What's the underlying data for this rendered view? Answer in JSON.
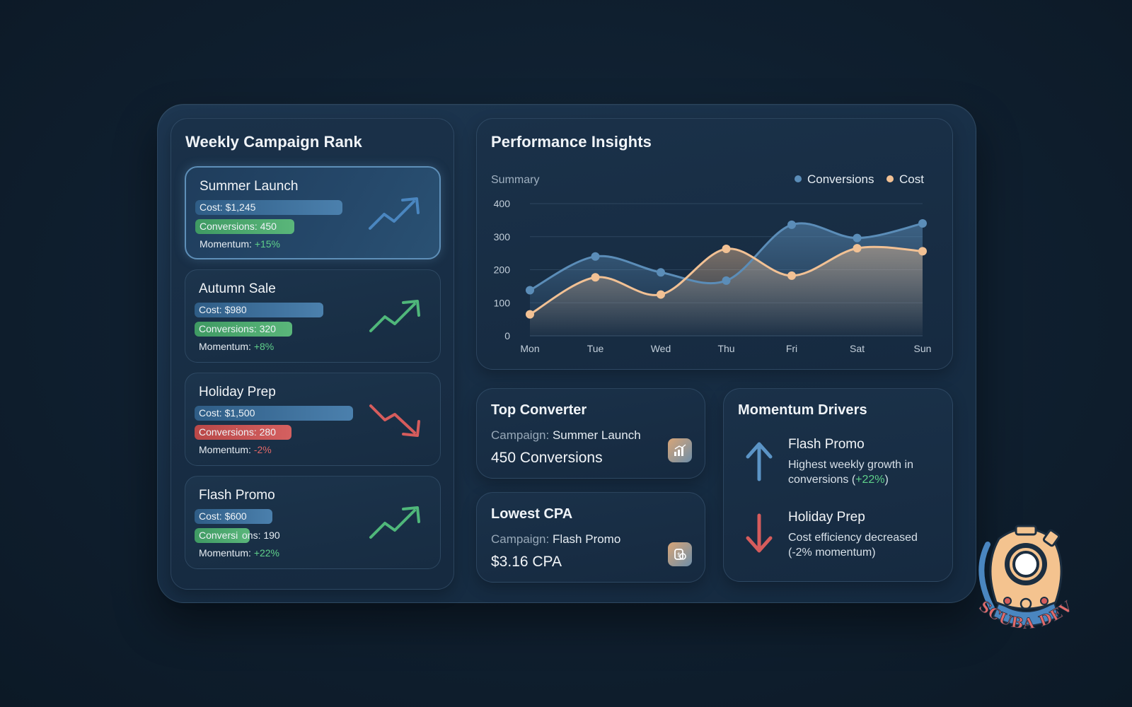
{
  "campaign_rank": {
    "title": "Weekly Campaign Rank",
    "items": [
      {
        "name": "Summer Launch",
        "cost": "Cost: $1,245",
        "conversions": "Conversions: 450",
        "momentum_label": "Momentum: ",
        "momentum": "+15%",
        "trend": "up"
      },
      {
        "name": "Autumn Sale",
        "cost": "Cost: $980",
        "conversions": "Conversions: 320",
        "momentum_label": "Momentum: ",
        "momentum": "+8%",
        "trend": "up"
      },
      {
        "name": "Holiday Prep",
        "cost": "Cost: $1,500",
        "conversions": "Conversions: 280",
        "momentum_label": "Momentum: ",
        "momentum": "-2%",
        "trend": "down"
      },
      {
        "name": "Flash Promo",
        "cost": "Cost: $600",
        "conversions_a": "Conversi",
        "conversions_b": "ons: 190",
        "momentum_label": "Momentum: ",
        "momentum": "+22%",
        "trend": "up"
      }
    ]
  },
  "performance": {
    "title": "Performance Insights",
    "subtitle": "Summary",
    "legend": [
      "Conversions",
      "Cost"
    ]
  },
  "chart_data": {
    "type": "area",
    "subtitle": "Summary",
    "categories": [
      "Mon",
      "Tue",
      "Wed",
      "Thu",
      "Fri",
      "Sat",
      "Sun"
    ],
    "series": [
      {
        "name": "Conversions",
        "values": [
          138,
          240,
          192,
          167,
          336,
          296,
          340
        ],
        "color": "#5b8db8"
      },
      {
        "name": "Cost",
        "values": [
          65,
          177,
          125,
          263,
          182,
          265,
          256
        ],
        "color": "#f2c194"
      }
    ],
    "yticks": [
      0,
      100,
      200,
      300,
      400
    ],
    "ylim": [
      0,
      400
    ],
    "grid": true,
    "legend_position": "top-right"
  },
  "top_converter": {
    "title": "Top Converter",
    "campaign_label": "Campaign: ",
    "campaign": "Summer Launch",
    "value": "450 Conversions"
  },
  "lowest_cpa": {
    "title": "Lowest CPA",
    "campaign_label": "Campaign: ",
    "campaign": "Flash Promo",
    "value": "$3.16 CPA"
  },
  "momentum_drivers": {
    "title": "Momentum Drivers",
    "items": [
      {
        "name": "Flash Promo",
        "desc_a": "Highest weekly growth in conversions (",
        "desc_pct": "+22%",
        "desc_b": ")",
        "direction": "up"
      },
      {
        "name": "Holiday Prep",
        "desc": "Cost efficiency decreased (-2% momentum)",
        "direction": "down"
      }
    ]
  },
  "logo": {
    "text": "SCUBA DEV"
  },
  "colors": {
    "positive": "#5fd08a",
    "negative": "#e06868",
    "conversions": "#5b8db8",
    "cost": "#f2c194"
  }
}
